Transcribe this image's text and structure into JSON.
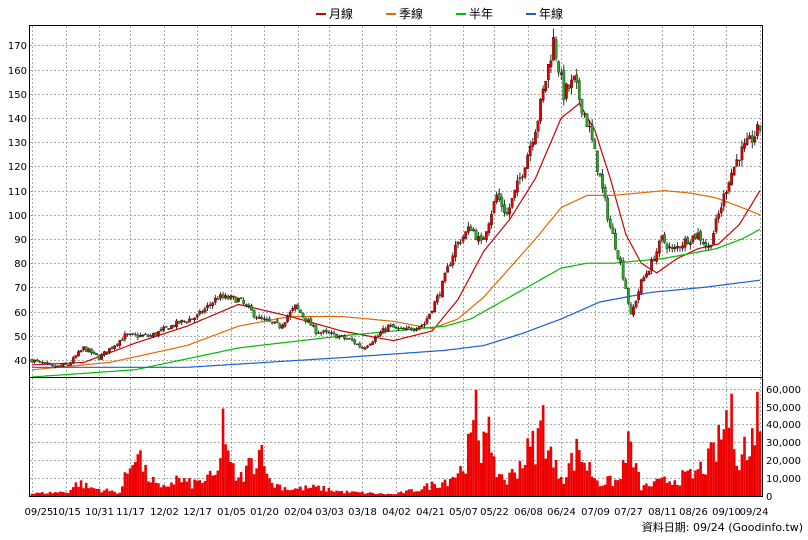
{
  "chart_data": [
    {
      "type": "candlestick",
      "title": "",
      "legend": [
        {
          "label": "月線",
          "color": "#cc0000"
        },
        {
          "label": "季線",
          "color": "#e06b00"
        },
        {
          "label": "半年",
          "color": "#00bb00"
        },
        {
          "label": "年線",
          "color": "#1a5fd1"
        }
      ],
      "legend_position": "top-center",
      "y_ticks": [
        40,
        50,
        60,
        70,
        80,
        90,
        100,
        110,
        120,
        130,
        140,
        150,
        160,
        170
      ],
      "ylim": [
        33,
        178
      ],
      "grid": true,
      "x_ticks": [
        "09/25",
        "10/15",
        "10/31",
        "11/17",
        "12/02",
        "12/17",
        "01/05",
        "01/20",
        "02/04",
        "03/03",
        "03/18",
        "04/02",
        "04/21",
        "05/07",
        "05/22",
        "06/08",
        "06/24",
        "07/09",
        "07/27",
        "08/11",
        "08/26",
        "09/10",
        "09/24"
      ],
      "close_keyframes": [
        [
          0,
          40
        ],
        [
          8,
          37
        ],
        [
          14,
          38
        ],
        [
          20,
          45
        ],
        [
          26,
          41
        ],
        [
          36,
          50
        ],
        [
          46,
          50
        ],
        [
          56,
          55
        ],
        [
          64,
          58
        ],
        [
          72,
          66
        ],
        [
          80,
          65
        ],
        [
          88,
          57
        ],
        [
          96,
          54
        ],
        [
          102,
          62
        ],
        [
          110,
          52
        ],
        [
          118,
          50
        ],
        [
          124,
          48
        ],
        [
          128,
          45
        ],
        [
          134,
          50
        ],
        [
          138,
          54
        ],
        [
          144,
          52
        ],
        [
          152,
          55
        ],
        [
          158,
          68
        ],
        [
          164,
          87
        ],
        [
          170,
          95
        ],
        [
          174,
          88
        ],
        [
          180,
          108
        ],
        [
          184,
          100
        ],
        [
          190,
          118
        ],
        [
          196,
          140
        ],
        [
          202,
          172
        ],
        [
          206,
          150
        ],
        [
          210,
          155
        ],
        [
          216,
          135
        ],
        [
          220,
          115
        ],
        [
          224,
          95
        ],
        [
          228,
          80
        ],
        [
          230,
          70
        ],
        [
          232,
          58
        ],
        [
          236,
          72
        ],
        [
          240,
          80
        ],
        [
          244,
          90
        ],
        [
          248,
          85
        ],
        [
          254,
          90
        ],
        [
          258,
          92
        ],
        [
          262,
          86
        ],
        [
          266,
          100
        ],
        [
          270,
          115
        ],
        [
          274,
          125
        ],
        [
          278,
          130
        ],
        [
          282,
          136
        ]
      ],
      "ma_monthly": [
        [
          0,
          38
        ],
        [
          20,
          39
        ],
        [
          40,
          47
        ],
        [
          60,
          54
        ],
        [
          80,
          63
        ],
        [
          100,
          58
        ],
        [
          120,
          52
        ],
        [
          140,
          48
        ],
        [
          155,
          52
        ],
        [
          165,
          65
        ],
        [
          175,
          85
        ],
        [
          185,
          98
        ],
        [
          195,
          115
        ],
        [
          205,
          140
        ],
        [
          212,
          146
        ],
        [
          218,
          135
        ],
        [
          224,
          115
        ],
        [
          230,
          92
        ],
        [
          236,
          80
        ],
        [
          242,
          76
        ],
        [
          250,
          82
        ],
        [
          258,
          86
        ],
        [
          266,
          88
        ],
        [
          274,
          96
        ],
        [
          282,
          110
        ]
      ],
      "ma_quarterly": [
        [
          0,
          36
        ],
        [
          30,
          39
        ],
        [
          60,
          46
        ],
        [
          80,
          54
        ],
        [
          100,
          58
        ],
        [
          120,
          58
        ],
        [
          140,
          56
        ],
        [
          155,
          53
        ],
        [
          165,
          57
        ],
        [
          175,
          66
        ],
        [
          185,
          78
        ],
        [
          195,
          90
        ],
        [
          205,
          103
        ],
        [
          215,
          108
        ],
        [
          225,
          108
        ],
        [
          235,
          109
        ],
        [
          245,
          110
        ],
        [
          255,
          109
        ],
        [
          265,
          107
        ],
        [
          275,
          103
        ],
        [
          282,
          100
        ]
      ],
      "ma_halfyear": [
        [
          0,
          33
        ],
        [
          40,
          36
        ],
        [
          80,
          45
        ],
        [
          120,
          50
        ],
        [
          140,
          52
        ],
        [
          160,
          54
        ],
        [
          170,
          57
        ],
        [
          185,
          66
        ],
        [
          195,
          72
        ],
        [
          205,
          78
        ],
        [
          215,
          80
        ],
        [
          225,
          80
        ],
        [
          235,
          81
        ],
        [
          245,
          82
        ],
        [
          255,
          84
        ],
        [
          265,
          86
        ],
        [
          275,
          90
        ],
        [
          282,
          94
        ]
      ],
      "ma_yearly": [
        [
          0,
          37
        ],
        [
          60,
          37
        ],
        [
          120,
          41
        ],
        [
          160,
          44
        ],
        [
          175,
          46
        ],
        [
          190,
          51
        ],
        [
          205,
          57
        ],
        [
          220,
          64
        ],
        [
          240,
          68
        ],
        [
          260,
          70
        ],
        [
          282,
          73
        ]
      ],
      "volume_ticks": [
        0,
        10000,
        20000,
        30000,
        40000,
        50000,
        60000
      ],
      "volume_labels": [
        "0",
        "10,000",
        "20,000",
        "30,000",
        "40,000",
        "50,000",
        "60,000"
      ],
      "volume_max": 66000,
      "volume_keyframes": [
        [
          0,
          1500
        ],
        [
          14,
          2500
        ],
        [
          18,
          8000
        ],
        [
          22,
          5000
        ],
        [
          34,
          2000
        ],
        [
          38,
          18000
        ],
        [
          40,
          30000
        ],
        [
          42,
          22000
        ],
        [
          44,
          13000
        ],
        [
          50,
          4000
        ],
        [
          56,
          10000
        ],
        [
          62,
          7000
        ],
        [
          72,
          12000
        ],
        [
          74,
          48000
        ],
        [
          76,
          20000
        ],
        [
          80,
          9000
        ],
        [
          90,
          30000
        ],
        [
          92,
          8000
        ],
        [
          100,
          4000
        ],
        [
          110,
          5000
        ],
        [
          120,
          2500
        ],
        [
          140,
          1000
        ],
        [
          150,
          4000
        ],
        [
          160,
          9000
        ],
        [
          166,
          15000
        ],
        [
          170,
          30000
        ],
        [
          172,
          46000
        ],
        [
          174,
          26000
        ],
        [
          176,
          60000
        ],
        [
          178,
          18000
        ],
        [
          184,
          9000
        ],
        [
          190,
          21000
        ],
        [
          196,
          33000
        ],
        [
          198,
          45000
        ],
        [
          202,
          17000
        ],
        [
          206,
          12000
        ],
        [
          212,
          28000
        ],
        [
          214,
          20000
        ],
        [
          220,
          8000
        ],
        [
          228,
          9000
        ],
        [
          230,
          30000
        ],
        [
          232,
          26000
        ],
        [
          236,
          5000
        ],
        [
          246,
          9000
        ],
        [
          256,
          12000
        ],
        [
          262,
          20000
        ],
        [
          266,
          30000
        ],
        [
          270,
          50000
        ],
        [
          272,
          36000
        ],
        [
          274,
          24000
        ],
        [
          276,
          30000
        ],
        [
          278,
          20000
        ],
        [
          280,
          48000
        ],
        [
          282,
          51000
        ]
      ]
    }
  ],
  "footer": "資料日期: 09/24  (Goodinfo.tw)"
}
